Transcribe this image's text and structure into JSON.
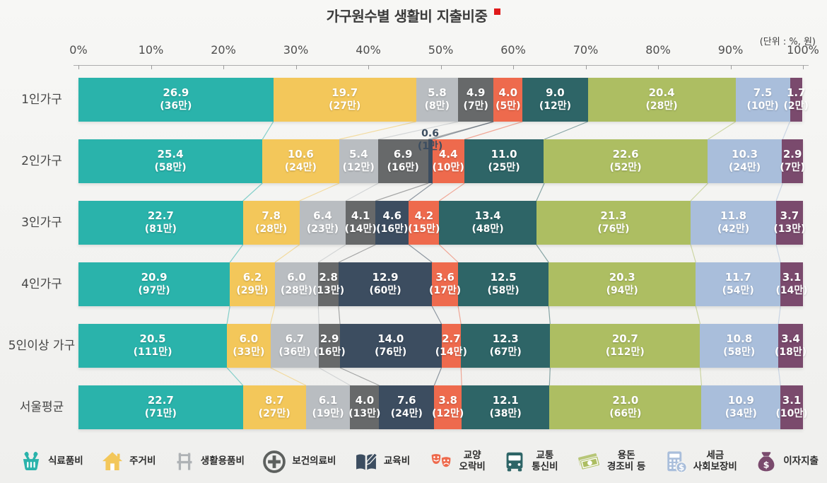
{
  "title": "가구원수별 생활비 지출비중",
  "unit_label": "(단위 : %, 원)",
  "chart_data": {
    "type": "bar",
    "subtype": "horizontal-stacked-100pct",
    "title": "가구원수별 생활비 지출비중",
    "unit": "(단위 : %, 원)",
    "x_ticks": [
      "0%",
      "10%",
      "20%",
      "30%",
      "40%",
      "50%",
      "60%",
      "70%",
      "80%",
      "90%",
      "100%"
    ],
    "xlim": [
      0,
      100
    ],
    "grid": false,
    "legend_position": "bottom",
    "categories": [
      "1인가구",
      "2인가구",
      "3인가구",
      "4인가구",
      "5인이상 가구",
      "서울평균"
    ],
    "series": [
      {
        "name": "식료품비",
        "color": "#2ab3ab",
        "values": [
          26.9,
          25.4,
          22.7,
          20.9,
          20.5,
          22.7
        ],
        "amounts": [
          "(36만)",
          "(58만)",
          "(81만)",
          "(97만)",
          "(111만)",
          "(71만)"
        ]
      },
      {
        "name": "주거비",
        "color": "#f3c75a",
        "values": [
          19.7,
          10.6,
          7.8,
          6.2,
          6.0,
          8.7
        ],
        "amounts": [
          "(27만)",
          "(24만)",
          "(28만)",
          "(29만)",
          "(33만)",
          "(27만)"
        ]
      },
      {
        "name": "생활용품비",
        "color": "#b9bdc1",
        "values": [
          5.8,
          5.4,
          6.4,
          6.0,
          6.7,
          6.1
        ],
        "amounts": [
          "(8만)",
          "(12만)",
          "(23만)",
          "(28만)",
          "(36만)",
          "(19만)"
        ]
      },
      {
        "name": "보건의료비",
        "color": "#67696a",
        "values": [
          4.9,
          6.9,
          4.1,
          2.8,
          2.9,
          4.0
        ],
        "amounts": [
          "(7만)",
          "(16만)",
          "(14만)",
          "(13만)",
          "(16만)",
          "(13만)"
        ]
      },
      {
        "name": "교육비",
        "color": "#3c4d60",
        "values": [
          0,
          0.6,
          4.6,
          12.9,
          14.0,
          7.6
        ],
        "amounts": [
          "",
          "(1만)",
          "(16만)",
          "(60만)",
          "(76만)",
          "(24만)"
        ]
      },
      {
        "name": "교양오락비",
        "color": "#ee6a4d",
        "values": [
          4.0,
          4.4,
          4.2,
          3.6,
          2.7,
          3.8
        ],
        "amounts": [
          "(5만)",
          "(10만)",
          "(15만)",
          "(17만)",
          "(14만)",
          "(12만)"
        ]
      },
      {
        "name": "교통통신비",
        "color": "#2e6567",
        "values": [
          9.0,
          11.0,
          13.4,
          12.5,
          12.3,
          12.1
        ],
        "amounts": [
          "(12만)",
          "(25만)",
          "(48만)",
          "(58만)",
          "(67만)",
          "(38만)"
        ]
      },
      {
        "name": "용돈 경조비 등",
        "color": "#adbe62",
        "values": [
          20.4,
          22.6,
          21.3,
          20.3,
          20.7,
          21.0
        ],
        "amounts": [
          "(28만)",
          "(52만)",
          "(76만)",
          "(94만)",
          "(112만)",
          "(66만)"
        ]
      },
      {
        "name": "세금 사회보장비",
        "color": "#a9bedb",
        "values": [
          7.5,
          10.3,
          11.8,
          11.7,
          10.8,
          10.9
        ],
        "amounts": [
          "(10만)",
          "(24만)",
          "(42만)",
          "(54만)",
          "(58만)",
          "(34만)"
        ]
      },
      {
        "name": "이자지출",
        "color": "#7a4a6d",
        "values": [
          1.7,
          2.9,
          3.7,
          3.1,
          3.4,
          3.1
        ],
        "amounts": [
          "(2만)",
          "(7만)",
          "(13만)",
          "(14만)",
          "(18만)",
          "(10만)"
        ]
      }
    ]
  },
  "legend": [
    {
      "icon": "basket-icon",
      "color": "#2ab3ab",
      "lines": [
        "식료품비"
      ]
    },
    {
      "icon": "house-icon",
      "color": "#f3c75a",
      "lines": [
        "주거비"
      ]
    },
    {
      "icon": "chair-icon",
      "color": "#aeb2b5",
      "lines": [
        "생활용품비"
      ]
    },
    {
      "icon": "medical-cross-icon",
      "color": "#5d605e",
      "lines": [
        "보건의료비"
      ]
    },
    {
      "icon": "book-pencil-icon",
      "color": "#3c4d60",
      "lines": [
        "교육비"
      ]
    },
    {
      "icon": "theater-masks-icon",
      "color": "#ee6a4d",
      "lines": [
        "교양",
        "오락비"
      ]
    },
    {
      "icon": "bus-icon",
      "color": "#2e6567",
      "lines": [
        "교통",
        "통신비"
      ]
    },
    {
      "icon": "banknotes-icon",
      "color": "#adbe62",
      "lines": [
        "용돈",
        "경조비 등"
      ]
    },
    {
      "icon": "calculator-coin-icon",
      "color": "#a9bedb",
      "lines": [
        "세금",
        "사회보장비"
      ]
    },
    {
      "icon": "money-bag-icon",
      "color": "#7a4a6d",
      "lines": [
        "이자지출"
      ]
    }
  ]
}
